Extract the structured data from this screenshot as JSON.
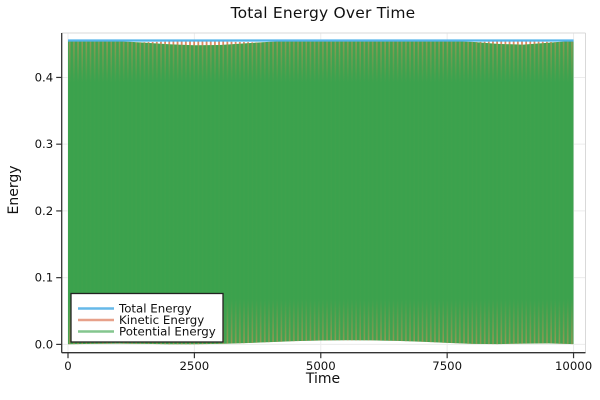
{
  "figure": {
    "background": "#ffffff"
  },
  "chart_data": {
    "type": "line",
    "title": "Total Energy Over Time",
    "xlabel": "Time",
    "ylabel": "Energy",
    "x_ticks": [
      0,
      2500,
      5000,
      7500,
      10000
    ],
    "y_ticks": [
      0.0,
      0.1,
      0.2,
      0.3,
      0.4
    ],
    "xlim": [
      -120,
      10240
    ],
    "ylim": [
      -0.0135,
      0.466
    ],
    "grid": true,
    "legend_position": "bottom-left",
    "description": "Total energy is constant; kinetic and potential energy oscillate rapidly and complementarily between 0 and the total, appearing as dense vertical striping with slow beat-pattern envelopes.",
    "total_energy_value": 0.4553,
    "series": [
      {
        "name": "Total Energy",
        "color": "#54b4ea",
        "legend_color": "#66b9e9",
        "kind": "constant",
        "value": 0.4553
      },
      {
        "name": "Kinetic Energy",
        "color": "#e08a63",
        "legend_color": "#e7a18a",
        "kind": "fast-oscillation",
        "min": 0.0,
        "max": 0.4553
      },
      {
        "name": "Potential Energy",
        "color": "#3ba24d",
        "legend_color": "#84c68e",
        "kind": "fast-oscillation",
        "min": 0.0,
        "max": 0.4553
      }
    ],
    "envelope_x": [
      0,
      500,
      1000,
      1500,
      2000,
      2500,
      3000,
      3500,
      4000,
      4500,
      5000,
      5500,
      6000,
      6500,
      7000,
      7500,
      8000,
      8500,
      9000,
      9500,
      10000
    ],
    "potential_upper_envelope": [
      0.4553,
      0.4551,
      0.4543,
      0.4522,
      0.4498,
      0.4482,
      0.4486,
      0.451,
      0.4536,
      0.455,
      0.4553,
      0.4553,
      0.4553,
      0.4553,
      0.4552,
      0.4548,
      0.4532,
      0.4502,
      0.4492,
      0.452,
      0.455
    ],
    "kinetic_upper_envelope": [
      0.45,
      0.4505,
      0.4515,
      0.4528,
      0.4538,
      0.4542,
      0.454,
      0.453,
      0.4518,
      0.4508,
      0.45,
      0.4498,
      0.4498,
      0.45,
      0.4505,
      0.4515,
      0.453,
      0.454,
      0.4542,
      0.4532,
      0.4515
    ],
    "lower_envelope": [
      0.0003,
      0.0008,
      0.0012,
      0.0008,
      0.0003,
      0.0003,
      0.0008,
      0.002,
      0.0035,
      0.005,
      0.0058,
      0.0062,
      0.006,
      0.0052,
      0.004,
      0.0022,
      0.0008,
      0.0005,
      0.0012,
      0.0015,
      0.0005
    ],
    "stripe_colors": {
      "green": "#41a351",
      "olive": "#8d9952",
      "salmon": "#e08a63",
      "solid_green": "#3ba24d"
    },
    "axis_color": "#333333",
    "tick_label_color": "#111111",
    "grid_color": "#ececec",
    "spine_light_color": "#d9d9d9",
    "legend_border_color": "#222222"
  }
}
